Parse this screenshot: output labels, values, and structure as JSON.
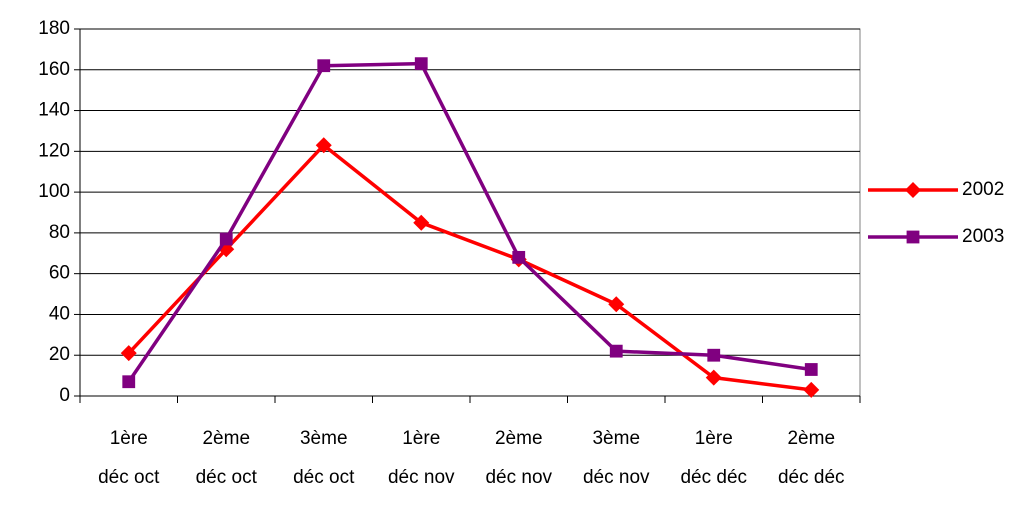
{
  "chart_data": {
    "type": "line",
    "categories": [
      "1ère déc oct",
      "2ème déc oct",
      "3ème déc oct",
      "1ère déc nov",
      "2ème déc nov",
      "3ème déc nov",
      "1ère déc déc",
      "2ème déc déc"
    ],
    "series": [
      {
        "name": "2002",
        "color": "#ff0000",
        "marker": "diamond",
        "values": [
          21,
          72,
          123,
          85,
          67,
          45,
          9,
          3
        ]
      },
      {
        "name": "2003",
        "color": "#800080",
        "marker": "square",
        "values": [
          7,
          77,
          162,
          163,
          68,
          22,
          20,
          13
        ]
      }
    ],
    "ylim": [
      0,
      180
    ],
    "yticks": [
      0,
      20,
      40,
      60,
      80,
      100,
      120,
      140,
      160,
      180
    ],
    "grid": true,
    "legend": "right"
  }
}
